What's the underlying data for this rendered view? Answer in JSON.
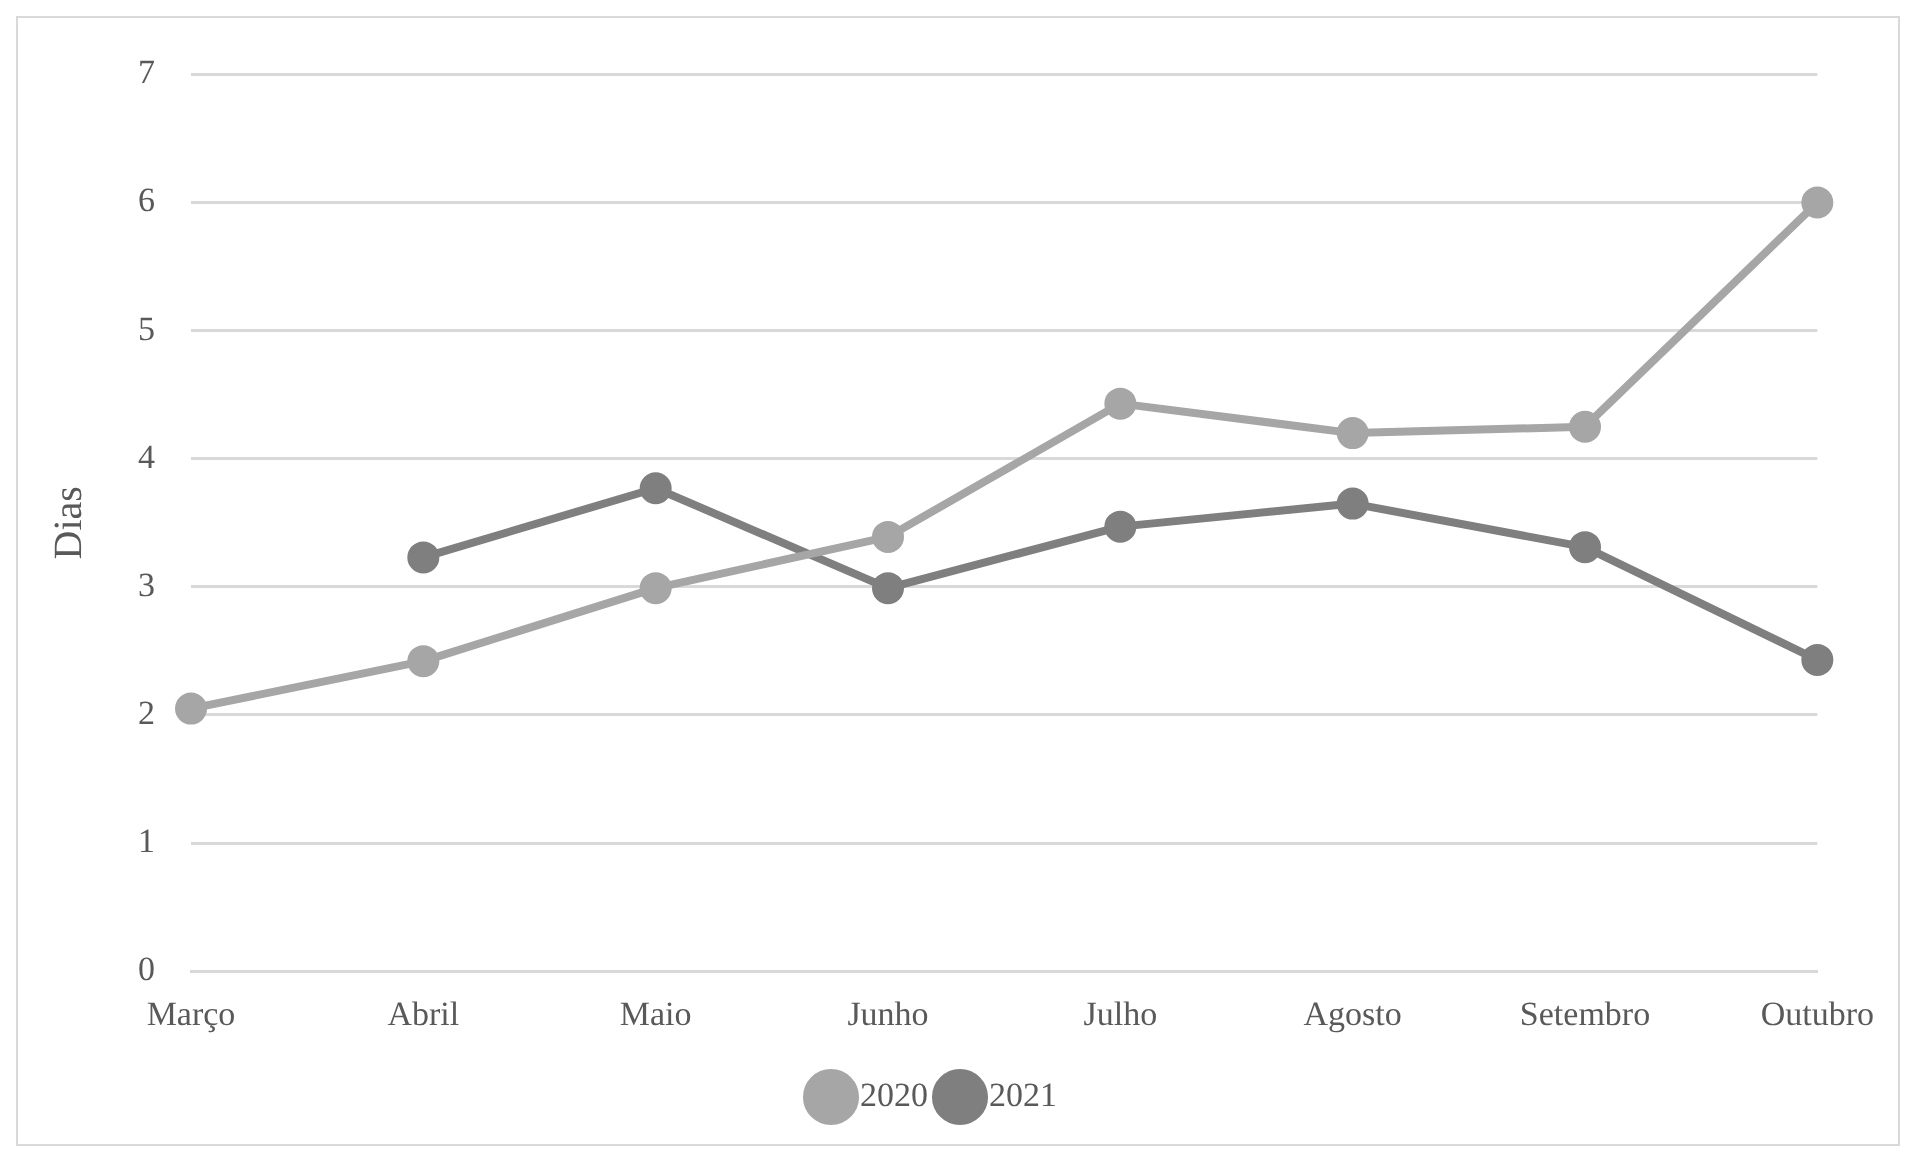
{
  "chart_data": {
    "type": "line",
    "ylabel": "Dias",
    "categories": [
      "Março",
      "Abril",
      "Maio",
      "Junho",
      "Julho",
      "Agosto",
      "Setembro",
      "Outubro"
    ],
    "series": [
      {
        "name": "2020",
        "color": "#a6a6a6",
        "values": [
          2.05,
          2.42,
          2.99,
          3.39,
          4.43,
          4.2,
          4.25,
          6.0
        ]
      },
      {
        "name": "2021",
        "color": "#7f7f7f",
        "values": [
          null,
          3.23,
          3.77,
          2.99,
          3.47,
          3.65,
          3.31,
          2.43
        ]
      }
    ],
    "ylim": [
      0,
      7
    ],
    "yticks": [
      0,
      1,
      2,
      3,
      4,
      5,
      6,
      7
    ],
    "grid": "y",
    "legend": "bottom",
    "marker": "circle",
    "line_style": "solid"
  }
}
